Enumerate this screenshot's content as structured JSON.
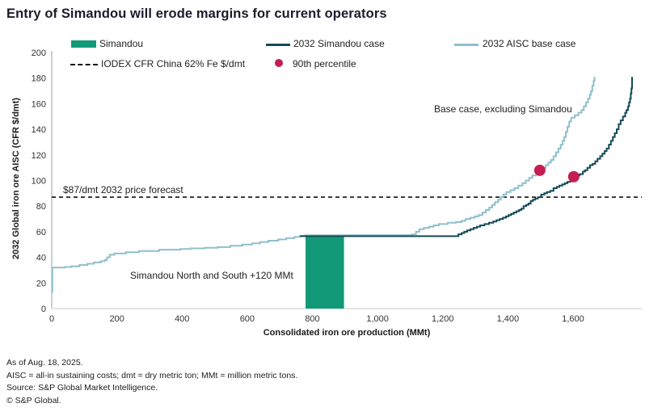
{
  "title": "Entry of Simandou will erode margins for current operators",
  "legend": {
    "simandou": "Simandou",
    "iodex": "IODEX CFR China 62% Fe $/dmt",
    "simandou_case": "2032 Simandou case",
    "percentile": "90th percentile",
    "base_case": "2032 AISC base case"
  },
  "annotations": {
    "price_forecast": "$87/dmt 2032 price forecast",
    "simandou_note": "Simandou North and South +120 MMt",
    "base_case_note": "Base case, excluding Simandou"
  },
  "footer": {
    "as_of": "As of Aug. 18, 2025.",
    "definitions": "AISC = all-in sustaining costs; dmt = dry metric ton; MMt = million metric tons.",
    "source": "Source: S&P Global Market Intelligence.",
    "copyright": "© S&P Global."
  },
  "colors": {
    "green": "#129a78",
    "dark_teal": "#164a58",
    "light_blue": "#8fbfcc",
    "red": "#c41e52",
    "dashed": "#111111",
    "axis_left": "#9d9d9d",
    "axis_bottom": "#c9c9c9",
    "tick_text": "#333333"
  },
  "chart_data": {
    "type": "line",
    "title": "Entry of Simandou will erode margins for current operators",
    "xlabel": "Consolidated iron ore production (MMt)",
    "ylabel": "2032 Global iron ore AISC (CFR $/dmt)",
    "xlim": [
      0,
      1810
    ],
    "ylim": [
      0,
      200
    ],
    "grid": false,
    "legend_position": "top",
    "x_ticks": [
      0,
      200,
      400,
      600,
      800,
      1000,
      1200,
      1400,
      1600
    ],
    "x_tick_labels": [
      "0",
      "200",
      "400",
      "600",
      "800",
      "1,000",
      "1,200",
      "1,400",
      "1,600"
    ],
    "y_ticks": [
      0,
      20,
      40,
      60,
      80,
      100,
      120,
      140,
      160,
      180,
      200
    ],
    "price_forecast_line": 87,
    "simandou_bar": {
      "x0": 779,
      "x1": 897,
      "top": 56.2,
      "label": "Simandou North and South +120 MMt",
      "added_supply_mmt": 120
    },
    "series": [
      {
        "name": "2032 AISC base case",
        "style": "step-after",
        "points": [
          [
            0,
            13
          ],
          [
            2,
            32
          ],
          [
            40,
            32.5
          ],
          [
            60,
            33
          ],
          [
            85,
            34
          ],
          [
            110,
            35
          ],
          [
            130,
            36
          ],
          [
            150,
            37
          ],
          [
            163,
            38
          ],
          [
            170,
            40
          ],
          [
            178,
            42
          ],
          [
            192,
            43
          ],
          [
            228,
            44
          ],
          [
            268,
            45
          ],
          [
            330,
            46
          ],
          [
            395,
            46.5
          ],
          [
            425,
            47
          ],
          [
            470,
            47.5
          ],
          [
            510,
            48
          ],
          [
            548,
            49
          ],
          [
            585,
            50
          ],
          [
            615,
            51
          ],
          [
            640,
            52
          ],
          [
            665,
            53
          ],
          [
            695,
            54
          ],
          [
            720,
            55
          ],
          [
            745,
            56
          ],
          [
            762,
            56.7
          ],
          [
            778,
            57.3
          ],
          [
            1095,
            57.3
          ],
          [
            1105,
            58
          ],
          [
            1118,
            60
          ],
          [
            1128,
            62
          ],
          [
            1142,
            63
          ],
          [
            1158,
            64
          ],
          [
            1172,
            65
          ],
          [
            1188,
            66
          ],
          [
            1215,
            67
          ],
          [
            1240,
            67.5
          ],
          [
            1258,
            68.5
          ],
          [
            1270,
            70
          ],
          [
            1285,
            71
          ],
          [
            1298,
            72
          ],
          [
            1310,
            73
          ],
          [
            1322,
            75
          ],
          [
            1332,
            77
          ],
          [
            1343,
            79
          ],
          [
            1352,
            81
          ],
          [
            1360,
            83
          ],
          [
            1370,
            85
          ],
          [
            1378,
            87
          ],
          [
            1386,
            89
          ],
          [
            1395,
            91
          ],
          [
            1408,
            92.5
          ],
          [
            1420,
            94
          ],
          [
            1432,
            96
          ],
          [
            1445,
            98
          ],
          [
            1455,
            100
          ],
          [
            1465,
            102
          ],
          [
            1475,
            104
          ],
          [
            1487,
            106
          ],
          [
            1498,
            108
          ],
          [
            1508,
            110
          ],
          [
            1516,
            112
          ],
          [
            1524,
            114
          ],
          [
            1532,
            116
          ],
          [
            1540,
            119
          ],
          [
            1548,
            122
          ],
          [
            1555,
            125
          ],
          [
            1562,
            128
          ],
          [
            1568,
            131
          ],
          [
            1573,
            134
          ],
          [
            1578,
            138
          ],
          [
            1583,
            142
          ],
          [
            1588,
            146
          ],
          [
            1594,
            149
          ],
          [
            1605,
            151
          ],
          [
            1616,
            153
          ],
          [
            1626,
            155
          ],
          [
            1633,
            158
          ],
          [
            1640,
            161
          ],
          [
            1646,
            164
          ],
          [
            1651,
            167
          ],
          [
            1655,
            170
          ],
          [
            1659,
            174
          ],
          [
            1663,
            178
          ],
          [
            1666,
            181
          ]
        ]
      },
      {
        "name": "2032 Simandou case",
        "style": "step-after",
        "points": [
          [
            762,
            56.5
          ],
          [
            900,
            56.5
          ],
          [
            1100,
            56.5
          ],
          [
            1235,
            56.5
          ],
          [
            1248,
            58
          ],
          [
            1258,
            59
          ],
          [
            1266,
            60
          ],
          [
            1275,
            61
          ],
          [
            1285,
            62
          ],
          [
            1295,
            63
          ],
          [
            1305,
            64
          ],
          [
            1315,
            65
          ],
          [
            1328,
            66
          ],
          [
            1342,
            67
          ],
          [
            1355,
            68
          ],
          [
            1365,
            69
          ],
          [
            1375,
            70
          ],
          [
            1385,
            71
          ],
          [
            1394,
            72
          ],
          [
            1402,
            73
          ],
          [
            1410,
            74
          ],
          [
            1418,
            75
          ],
          [
            1426,
            76
          ],
          [
            1434,
            77
          ],
          [
            1441,
            78
          ],
          [
            1448,
            80
          ],
          [
            1456,
            81
          ],
          [
            1463,
            82
          ],
          [
            1470,
            84
          ],
          [
            1477,
            85
          ],
          [
            1484,
            86
          ],
          [
            1492,
            87
          ],
          [
            1502,
            89
          ],
          [
            1512,
            90
          ],
          [
            1520,
            91
          ],
          [
            1530,
            92
          ],
          [
            1540,
            94
          ],
          [
            1550,
            95
          ],
          [
            1558,
            96
          ],
          [
            1567,
            97
          ],
          [
            1575,
            98
          ],
          [
            1583,
            99
          ],
          [
            1592,
            101
          ],
          [
            1602,
            103
          ],
          [
            1612,
            104
          ],
          [
            1620,
            105
          ],
          [
            1630,
            107
          ],
          [
            1637,
            108
          ],
          [
            1644,
            110
          ],
          [
            1652,
            112
          ],
          [
            1660,
            113
          ],
          [
            1668,
            115
          ],
          [
            1675,
            117
          ],
          [
            1683,
            119
          ],
          [
            1690,
            121
          ],
          [
            1697,
            123
          ],
          [
            1703,
            125
          ],
          [
            1710,
            128
          ],
          [
            1716,
            131
          ],
          [
            1722,
            134
          ],
          [
            1728,
            137
          ],
          [
            1734,
            140
          ],
          [
            1740,
            144
          ],
          [
            1746,
            147
          ],
          [
            1753,
            150
          ],
          [
            1760,
            153
          ],
          [
            1764,
            155
          ],
          [
            1769,
            158
          ],
          [
            1772,
            161
          ],
          [
            1775,
            164
          ],
          [
            1777,
            168
          ],
          [
            1779,
            172
          ],
          [
            1781,
            181
          ]
        ]
      }
    ],
    "percentile_points": [
      {
        "series": "2032 AISC base case",
        "x": 1498,
        "y": 108
      },
      {
        "series": "2032 Simandou case",
        "x": 1602,
        "y": 103
      }
    ]
  }
}
